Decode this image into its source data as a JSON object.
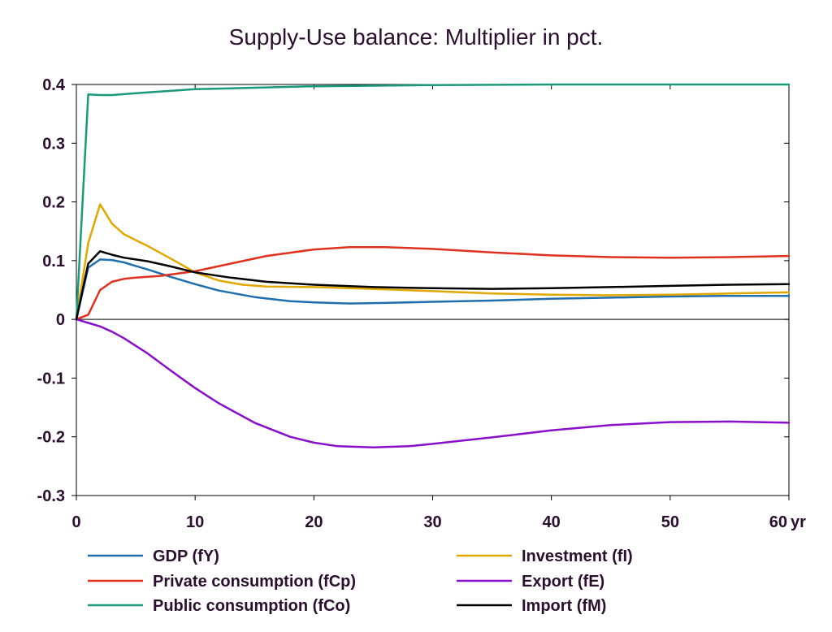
{
  "chart_data": {
    "type": "line",
    "title": "Supply-Use balance: Multiplier in pct.",
    "xlabel": "",
    "ylabel": "",
    "x_unit_label": "yr",
    "xlim": [
      0,
      60
    ],
    "ylim": [
      -0.3,
      0.4
    ],
    "x_ticks": [
      0,
      10,
      20,
      30,
      40,
      50,
      60
    ],
    "y_ticks": [
      -0.3,
      -0.2,
      -0.1,
      0,
      0.1,
      0.2,
      0.3,
      0.4
    ],
    "x_tick_labels": [
      "0",
      "10",
      "20",
      "30",
      "40",
      "50",
      "60"
    ],
    "y_tick_labels": [
      "-0.3",
      "-0.2",
      "-0.1",
      "0",
      "0.1",
      "0.2",
      "0.3",
      "0.4"
    ],
    "grid": false,
    "zero_line": true,
    "legend_position": "bottom",
    "series": [
      {
        "name": "GDP (fY)",
        "color": "#1f6fae",
        "x": [
          0,
          1,
          2,
          3,
          4,
          5,
          6,
          8,
          10,
          12,
          15,
          18,
          20,
          23,
          26,
          30,
          35,
          40,
          45,
          50,
          55,
          60
        ],
        "y": [
          0,
          0.088,
          0.102,
          0.101,
          0.097,
          0.091,
          0.085,
          0.072,
          0.06,
          0.049,
          0.038,
          0.031,
          0.029,
          0.027,
          0.028,
          0.03,
          0.032,
          0.035,
          0.037,
          0.039,
          0.04,
          0.04
        ]
      },
      {
        "name": "Investment (fI)",
        "color": "#e0a800",
        "x": [
          0,
          1,
          2,
          3,
          4,
          5,
          6,
          8,
          10,
          12,
          14,
          16,
          20,
          25,
          30,
          35,
          40,
          45,
          50,
          55,
          60
        ],
        "y": [
          0,
          0.13,
          0.196,
          0.163,
          0.145,
          0.135,
          0.125,
          0.103,
          0.08,
          0.066,
          0.059,
          0.056,
          0.055,
          0.052,
          0.048,
          0.044,
          0.042,
          0.041,
          0.042,
          0.044,
          0.046
        ]
      },
      {
        "name": "Private consumption (fCp)",
        "color": "#e0301e",
        "x": [
          0,
          1,
          2,
          3,
          4,
          5,
          7,
          10,
          13,
          16,
          20,
          23,
          26,
          30,
          35,
          40,
          45,
          50,
          55,
          60
        ],
        "y": [
          0,
          0.008,
          0.05,
          0.064,
          0.069,
          0.071,
          0.074,
          0.082,
          0.095,
          0.108,
          0.119,
          0.123,
          0.123,
          0.12,
          0.114,
          0.109,
          0.106,
          0.105,
          0.106,
          0.108
        ]
      },
      {
        "name": "Export (fE)",
        "color": "#8a0fcc",
        "x": [
          0,
          1,
          2,
          3,
          4,
          6,
          8,
          10,
          12,
          15,
          18,
          20,
          22,
          25,
          28,
          30,
          35,
          40,
          45,
          50,
          55,
          60
        ],
        "y": [
          0,
          -0.006,
          -0.012,
          -0.021,
          -0.032,
          -0.058,
          -0.088,
          -0.117,
          -0.143,
          -0.176,
          -0.2,
          -0.21,
          -0.216,
          -0.218,
          -0.216,
          -0.212,
          -0.201,
          -0.189,
          -0.18,
          -0.175,
          -0.174,
          -0.176
        ]
      },
      {
        "name": "Public consumption (fCo)",
        "color": "#1a9a7a",
        "x": [
          0,
          1,
          2,
          3,
          5,
          10,
          20,
          30,
          40,
          50,
          60
        ],
        "y": [
          0,
          0.383,
          0.382,
          0.382,
          0.385,
          0.392,
          0.397,
          0.399,
          0.4,
          0.4,
          0.4
        ]
      },
      {
        "name": "Import (fM)",
        "color": "#000000",
        "x": [
          0,
          1,
          2,
          3,
          4,
          6,
          8,
          10,
          13,
          16,
          20,
          25,
          30,
          35,
          40,
          45,
          50,
          55,
          60
        ],
        "y": [
          0,
          0.095,
          0.116,
          0.11,
          0.105,
          0.099,
          0.09,
          0.08,
          0.071,
          0.064,
          0.059,
          0.055,
          0.053,
          0.052,
          0.053,
          0.055,
          0.057,
          0.059,
          0.06
        ]
      }
    ]
  }
}
